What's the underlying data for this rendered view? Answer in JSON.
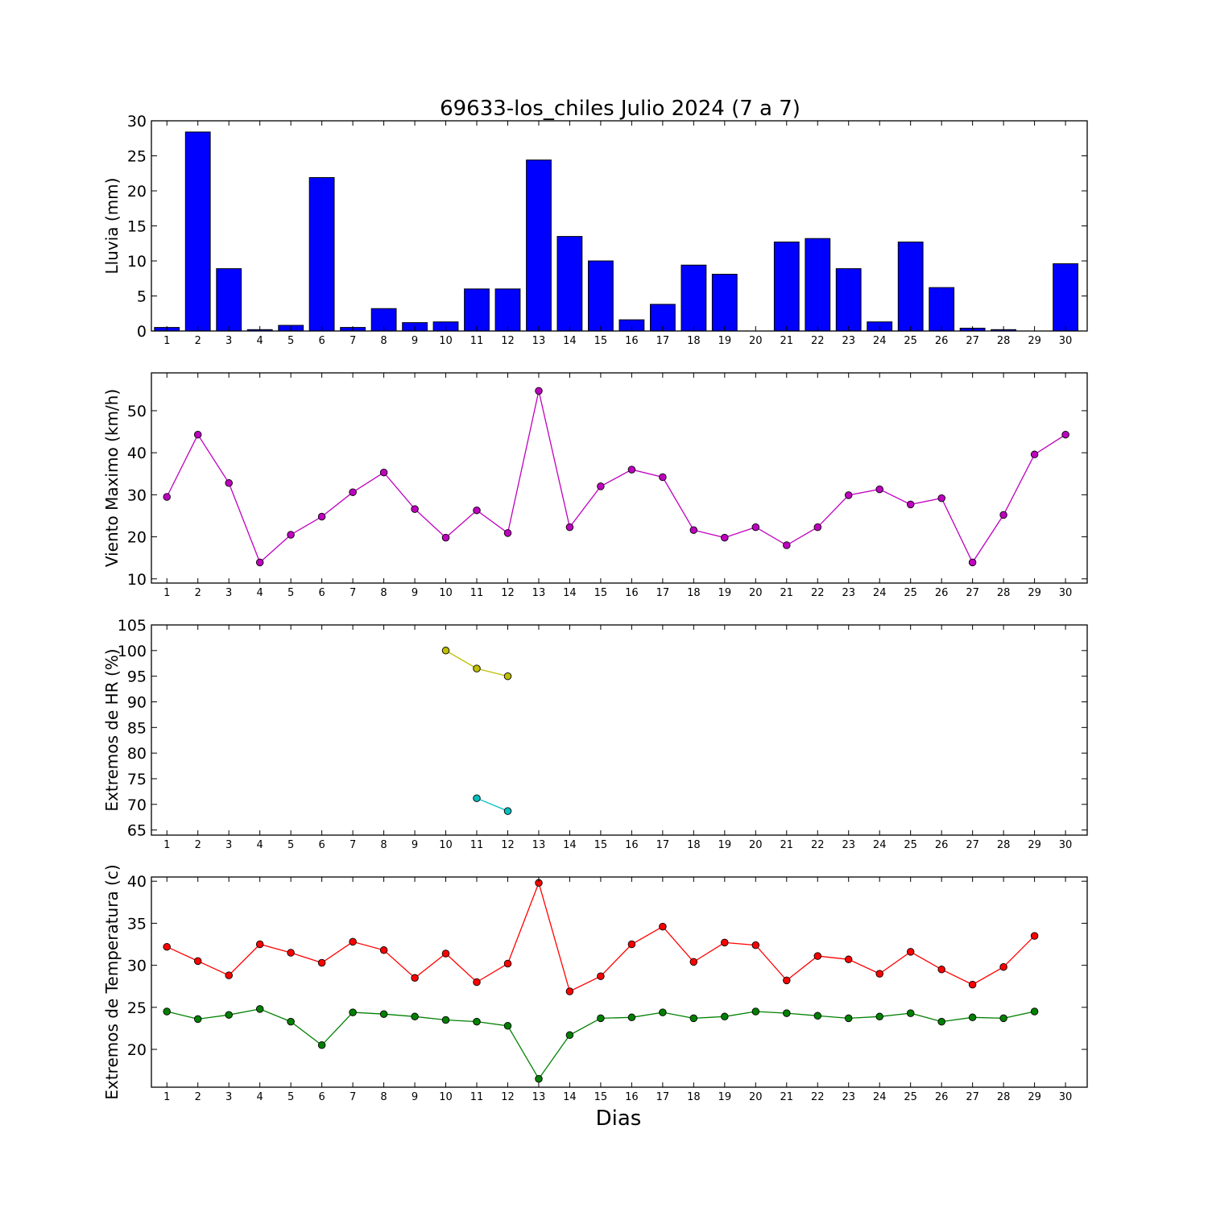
{
  "title": "69633-los_chiles Julio 2024  (7 a 7)",
  "xlabel": "Dias",
  "days": [
    "1",
    "2",
    "3",
    "4",
    "5",
    "6",
    "7",
    "8",
    "9",
    "10",
    "11",
    "12",
    "13",
    "14",
    "15",
    "16",
    "17",
    "18",
    "19",
    "20",
    "21",
    "22",
    "23",
    "24",
    "25",
    "26",
    "27",
    "28",
    "29",
    "30"
  ],
  "colors": {
    "rain": "#0000ff",
    "wind": "#bf00bf",
    "hr_max": "#bfbf00",
    "hr_min": "#00bfbf",
    "temp_max": "#ff0000",
    "temp_min": "#008000"
  },
  "chart_data": [
    {
      "type": "bar",
      "ylabel": "Lluvia (mm)",
      "ylim": [
        0,
        30
      ],
      "yticks": [
        0,
        5,
        10,
        15,
        20,
        25,
        30
      ],
      "grid": false,
      "x": [
        1,
        2,
        3,
        4,
        5,
        6,
        7,
        8,
        9,
        10,
        11,
        12,
        13,
        14,
        15,
        16,
        17,
        18,
        19,
        20,
        21,
        22,
        23,
        24,
        25,
        26,
        27,
        28,
        29,
        30
      ],
      "values": [
        0.5,
        28.4,
        8.9,
        0.2,
        0.8,
        21.9,
        0.5,
        3.2,
        1.2,
        1.3,
        6.0,
        6.0,
        24.4,
        13.5,
        10.0,
        1.6,
        3.8,
        9.4,
        8.1,
        0.0,
        12.7,
        13.2,
        8.9,
        1.3,
        12.7,
        6.2,
        0.4,
        0.2,
        0.0,
        9.6
      ]
    },
    {
      "type": "line",
      "ylabel": "Viento Maximo (km/h)",
      "ylim": [
        9,
        59
      ],
      "yticks": [
        10,
        20,
        30,
        40,
        50
      ],
      "grid": false,
      "x": [
        1,
        2,
        3,
        4,
        5,
        6,
        7,
        8,
        9,
        10,
        11,
        12,
        13,
        14,
        15,
        16,
        17,
        18,
        19,
        20,
        21,
        22,
        23,
        24,
        25,
        26,
        27,
        28,
        29,
        30
      ],
      "series": [
        {
          "values": [
            29.5,
            44.3,
            32.8,
            13.9,
            20.5,
            24.8,
            30.6,
            35.3,
            26.6,
            19.8,
            26.3,
            20.9,
            54.7,
            22.3,
            32.0,
            36.0,
            34.2,
            21.6,
            19.8,
            22.3,
            18.0,
            22.3,
            29.9,
            31.3,
            27.7,
            29.2,
            13.9,
            25.2,
            39.6,
            44.3
          ]
        }
      ]
    },
    {
      "type": "line",
      "ylabel": "Extremos de HR (%)",
      "ylim": [
        64,
        105
      ],
      "yticks": [
        65,
        70,
        75,
        80,
        85,
        90,
        95,
        100,
        105
      ],
      "grid": false,
      "series": [
        {
          "x": [
            10,
            11,
            12
          ],
          "values": [
            100,
            96.5,
            95
          ]
        },
        {
          "x": [
            11,
            12
          ],
          "values": [
            71.2,
            68.7
          ]
        }
      ]
    },
    {
      "type": "line",
      "ylabel": "Extremos de Temperatura (c)",
      "ylim": [
        15.5,
        40.5
      ],
      "yticks": [
        20,
        25,
        30,
        35,
        40
      ],
      "grid": false,
      "x": [
        1,
        2,
        3,
        4,
        5,
        6,
        7,
        8,
        9,
        10,
        11,
        12,
        13,
        14,
        15,
        16,
        17,
        18,
        19,
        20,
        21,
        22,
        23,
        24,
        25,
        26,
        27,
        28,
        29
      ],
      "series": [
        {
          "values": [
            32.2,
            30.5,
            28.8,
            32.5,
            31.5,
            30.3,
            32.8,
            31.8,
            28.5,
            31.4,
            28.0,
            30.2,
            39.8,
            26.9,
            28.7,
            32.5,
            34.6,
            30.4,
            32.7,
            32.4,
            28.2,
            31.1,
            30.7,
            29.0,
            31.6,
            29.5,
            27.7,
            29.8,
            33.5
          ]
        },
        {
          "values": [
            24.5,
            23.6,
            24.1,
            24.8,
            23.3,
            20.5,
            24.4,
            24.2,
            23.9,
            23.5,
            23.3,
            22.8,
            16.5,
            21.7,
            23.7,
            23.8,
            24.4,
            23.7,
            23.9,
            24.5,
            24.3,
            24.0,
            23.7,
            23.9,
            24.3,
            23.3,
            23.8,
            23.7,
            24.5
          ]
        }
      ]
    }
  ]
}
